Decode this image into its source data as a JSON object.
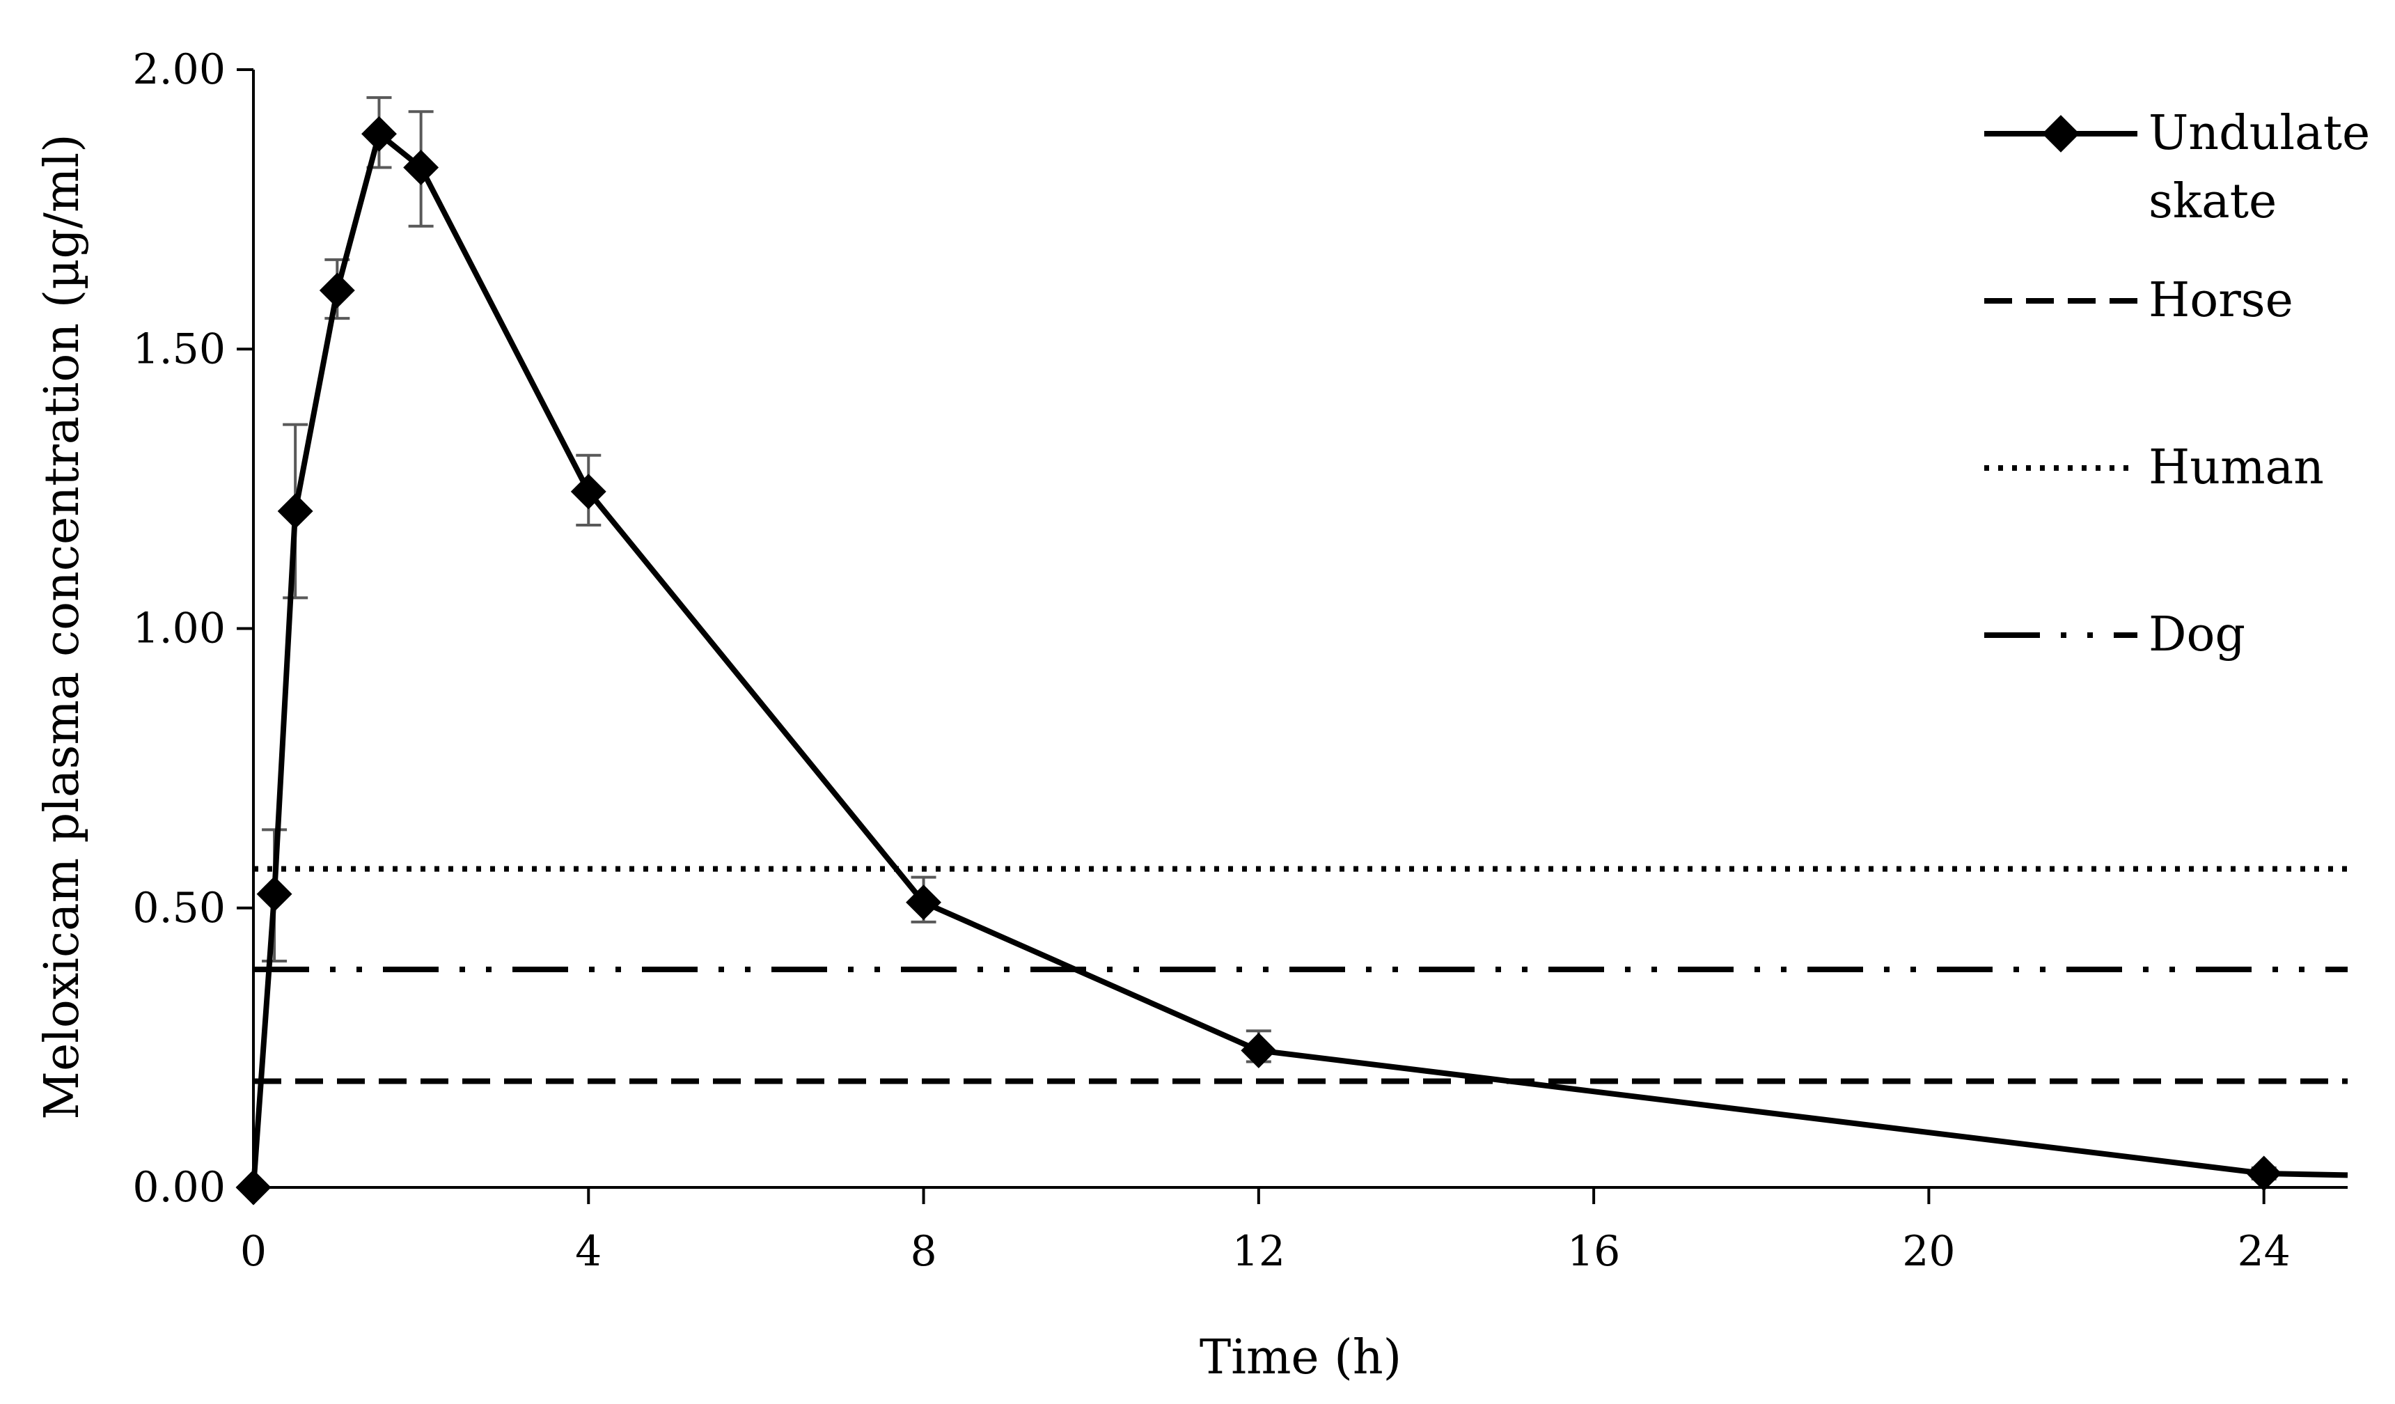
{
  "chart_data": {
    "type": "line",
    "title": "",
    "xlabel": "Time (h)",
    "ylabel": "Meloxicam plasma  concentration (µg/ml)",
    "xlim": [
      0,
      25
    ],
    "ylim": [
      0,
      2.0
    ],
    "x_ticks": [
      0,
      4,
      8,
      12,
      16,
      20,
      24
    ],
    "x_tick_labels": [
      "0",
      "4",
      "8",
      "12",
      "16",
      "20",
      "24"
    ],
    "y_ticks": [
      0,
      0.5,
      1.0,
      1.5,
      2.0
    ],
    "y_tick_labels": [
      "0.00",
      "0.50",
      "1.00",
      "1.50",
      "2.00"
    ],
    "grid": false,
    "legend_position": "top-right",
    "series": [
      {
        "name": "Undulate skate",
        "legend_lines": [
          "Undulate",
          "skate"
        ],
        "style": "solid-diamond",
        "x": [
          0,
          0.25,
          0.5,
          1,
          1.5,
          2,
          4,
          8,
          12,
          24,
          25
        ],
        "y": [
          0,
          0.525,
          1.21,
          1.605,
          1.885,
          1.825,
          1.245,
          0.51,
          0.245,
          0.025,
          0.022
        ],
        "markers": [
          true,
          true,
          true,
          true,
          true,
          true,
          true,
          true,
          true,
          true,
          false
        ],
        "err_low": [
          null,
          0.405,
          1.055,
          1.555,
          1.825,
          1.72,
          1.185,
          0.475,
          0.225,
          0.015,
          null
        ],
        "err_high": [
          null,
          0.64,
          1.365,
          1.66,
          1.95,
          1.925,
          1.31,
          0.555,
          0.28,
          0.035,
          null
        ]
      },
      {
        "name": "Horse",
        "style": "dashed",
        "constant": 0.19
      },
      {
        "name": "Human",
        "style": "dotted",
        "constant": 0.57
      },
      {
        "name": "Dog",
        "style": "dash-dot-dot",
        "constant": 0.39
      }
    ]
  }
}
